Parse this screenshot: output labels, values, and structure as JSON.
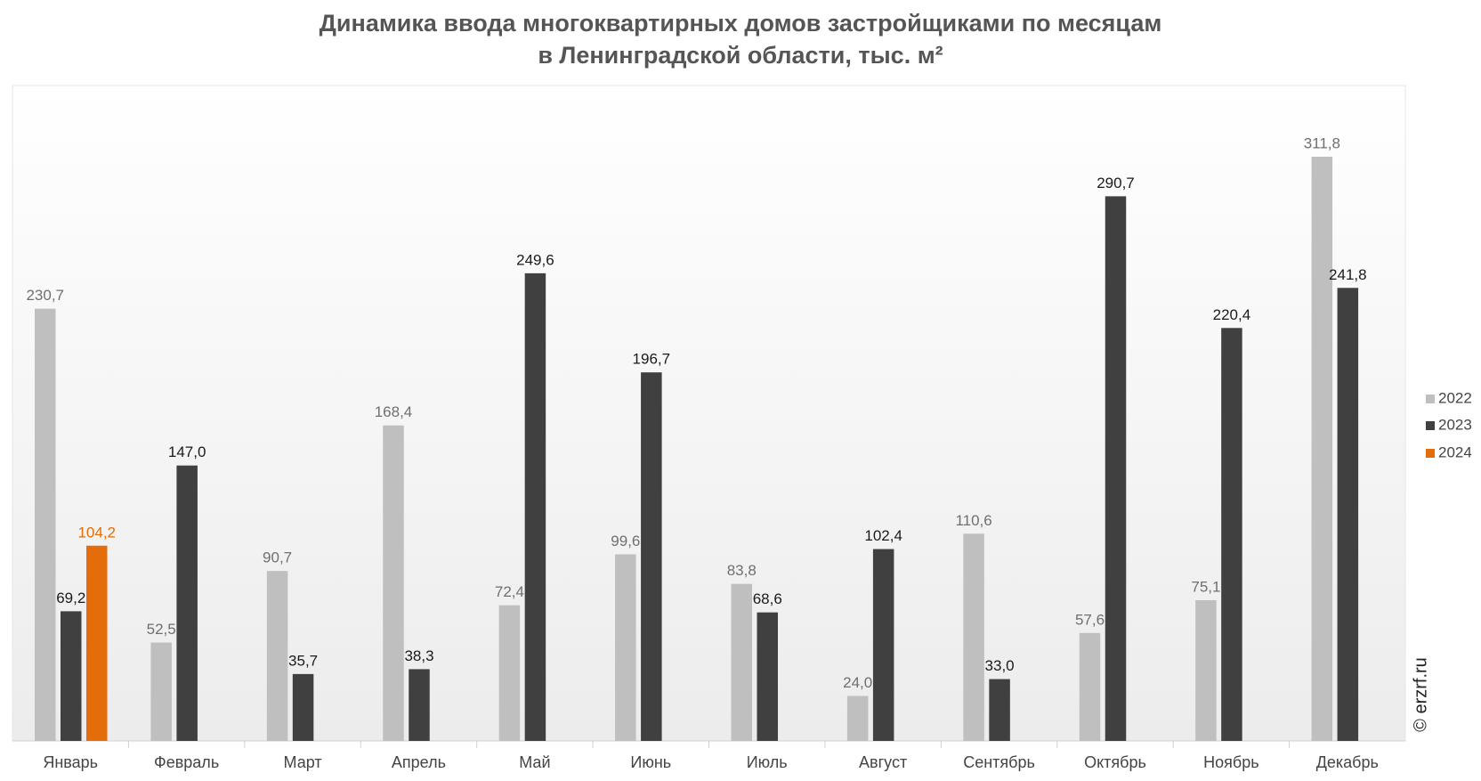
{
  "chart_data": {
    "type": "bar",
    "title": "Динамика ввода многоквартирных домов застройщиками по месяцам",
    "subtitle": "в Ленинградской области, тыс. м²",
    "source": "© erzrf.ru",
    "categories": [
      "Январь",
      "Февраль",
      "Март",
      "Апрель",
      "Май",
      "Июнь",
      "Июль",
      "Август",
      "Сентябрь",
      "Октябрь",
      "Ноябрь",
      "Декабрь"
    ],
    "series": [
      {
        "name": "2022",
        "color": "#bfbfbf",
        "label_color": "#6f6f6f",
        "values": [
          230.7,
          52.5,
          90.7,
          168.4,
          72.4,
          99.6,
          83.8,
          24.0,
          110.6,
          57.6,
          75.1,
          311.8
        ],
        "value_labels": [
          "230,7",
          "52,5",
          "90,7",
          "168,4",
          "72,4",
          "99,6",
          "83,8",
          "24,0",
          "110,6",
          "57,6",
          "75,1",
          "311,8"
        ]
      },
      {
        "name": "2023",
        "color": "#404040",
        "label_color": "#1a1a1a",
        "values": [
          69.2,
          147.0,
          35.7,
          38.3,
          249.6,
          196.7,
          68.6,
          102.4,
          33.0,
          290.7,
          220.4,
          241.8
        ],
        "value_labels": [
          "69,2",
          "147,0",
          "35,7",
          "38,3",
          "249,6",
          "196,7",
          "68,6",
          "102,4",
          "33,0",
          "290,7",
          "220,4",
          "241,8"
        ]
      },
      {
        "name": "2024",
        "color": "#e46c0a",
        "label_color": "#e46c0a",
        "values": [
          104.2,
          null,
          null,
          null,
          null,
          null,
          null,
          null,
          null,
          null,
          null,
          null
        ],
        "value_labels": [
          "104,2",
          null,
          null,
          null,
          null,
          null,
          null,
          null,
          null,
          null,
          null,
          null
        ]
      }
    ],
    "legend": "right"
  }
}
